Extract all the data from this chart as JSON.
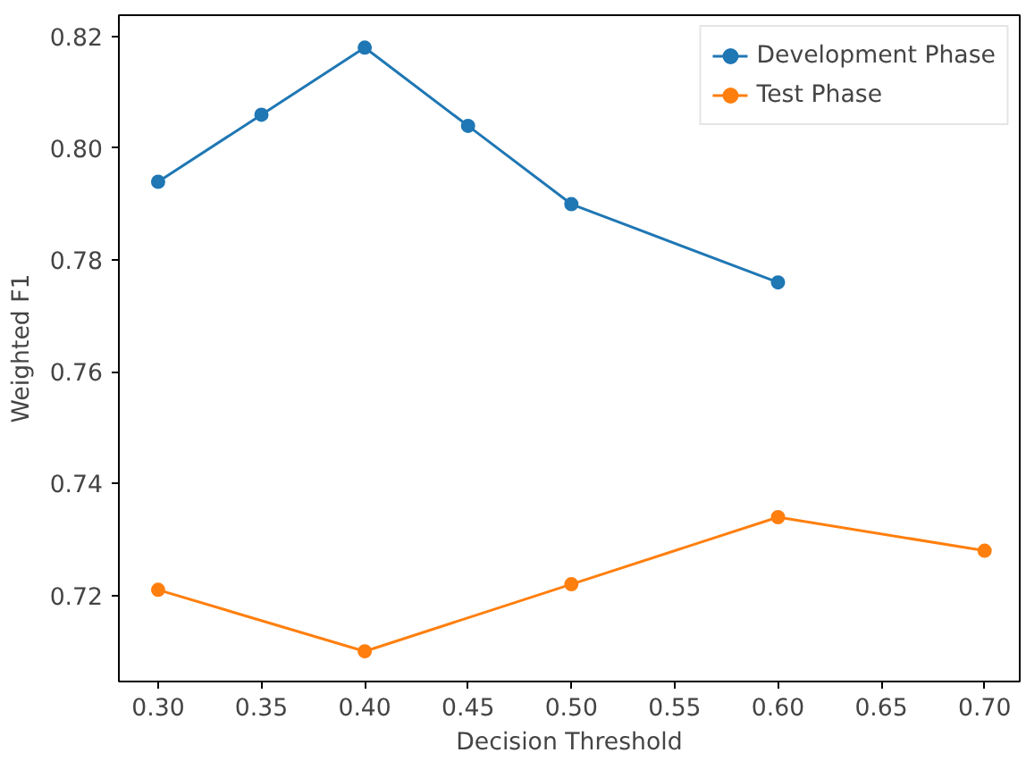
{
  "chart_data": {
    "type": "line",
    "xlabel": "Decision Threshold",
    "ylabel": "Weighted F1",
    "xlim": [
      0.281,
      0.717
    ],
    "ylim": [
      0.7046,
      0.8238
    ],
    "xticks": [
      {
        "value": 0.3,
        "label": "0.30"
      },
      {
        "value": 0.35,
        "label": "0.35"
      },
      {
        "value": 0.4,
        "label": "0.40"
      },
      {
        "value": 0.45,
        "label": "0.45"
      },
      {
        "value": 0.5,
        "label": "0.50"
      },
      {
        "value": 0.55,
        "label": "0.55"
      },
      {
        "value": 0.6,
        "label": "0.60"
      },
      {
        "value": 0.65,
        "label": "0.65"
      },
      {
        "value": 0.7,
        "label": "0.70"
      }
    ],
    "yticks": [
      {
        "value": 0.72,
        "label": "0.72"
      },
      {
        "value": 0.74,
        "label": "0.74"
      },
      {
        "value": 0.76,
        "label": "0.76"
      },
      {
        "value": 0.78,
        "label": "0.78"
      },
      {
        "value": 0.8,
        "label": "0.80"
      },
      {
        "value": 0.82,
        "label": "0.82"
      }
    ],
    "series": [
      {
        "name": "Development Phase",
        "color": "#1f77b4",
        "x": [
          0.3,
          0.35,
          0.4,
          0.45,
          0.5,
          0.6
        ],
        "values": [
          0.794,
          0.806,
          0.818,
          0.804,
          0.79,
          0.776
        ]
      },
      {
        "name": "Test Phase",
        "color": "#ff7f0e",
        "x": [
          0.3,
          0.4,
          0.5,
          0.6,
          0.7
        ],
        "values": [
          0.721,
          0.71,
          0.722,
          0.734,
          0.728
        ]
      }
    ],
    "marker": "circle",
    "line_style": "solid",
    "grid": false,
    "legend": "top right"
  }
}
